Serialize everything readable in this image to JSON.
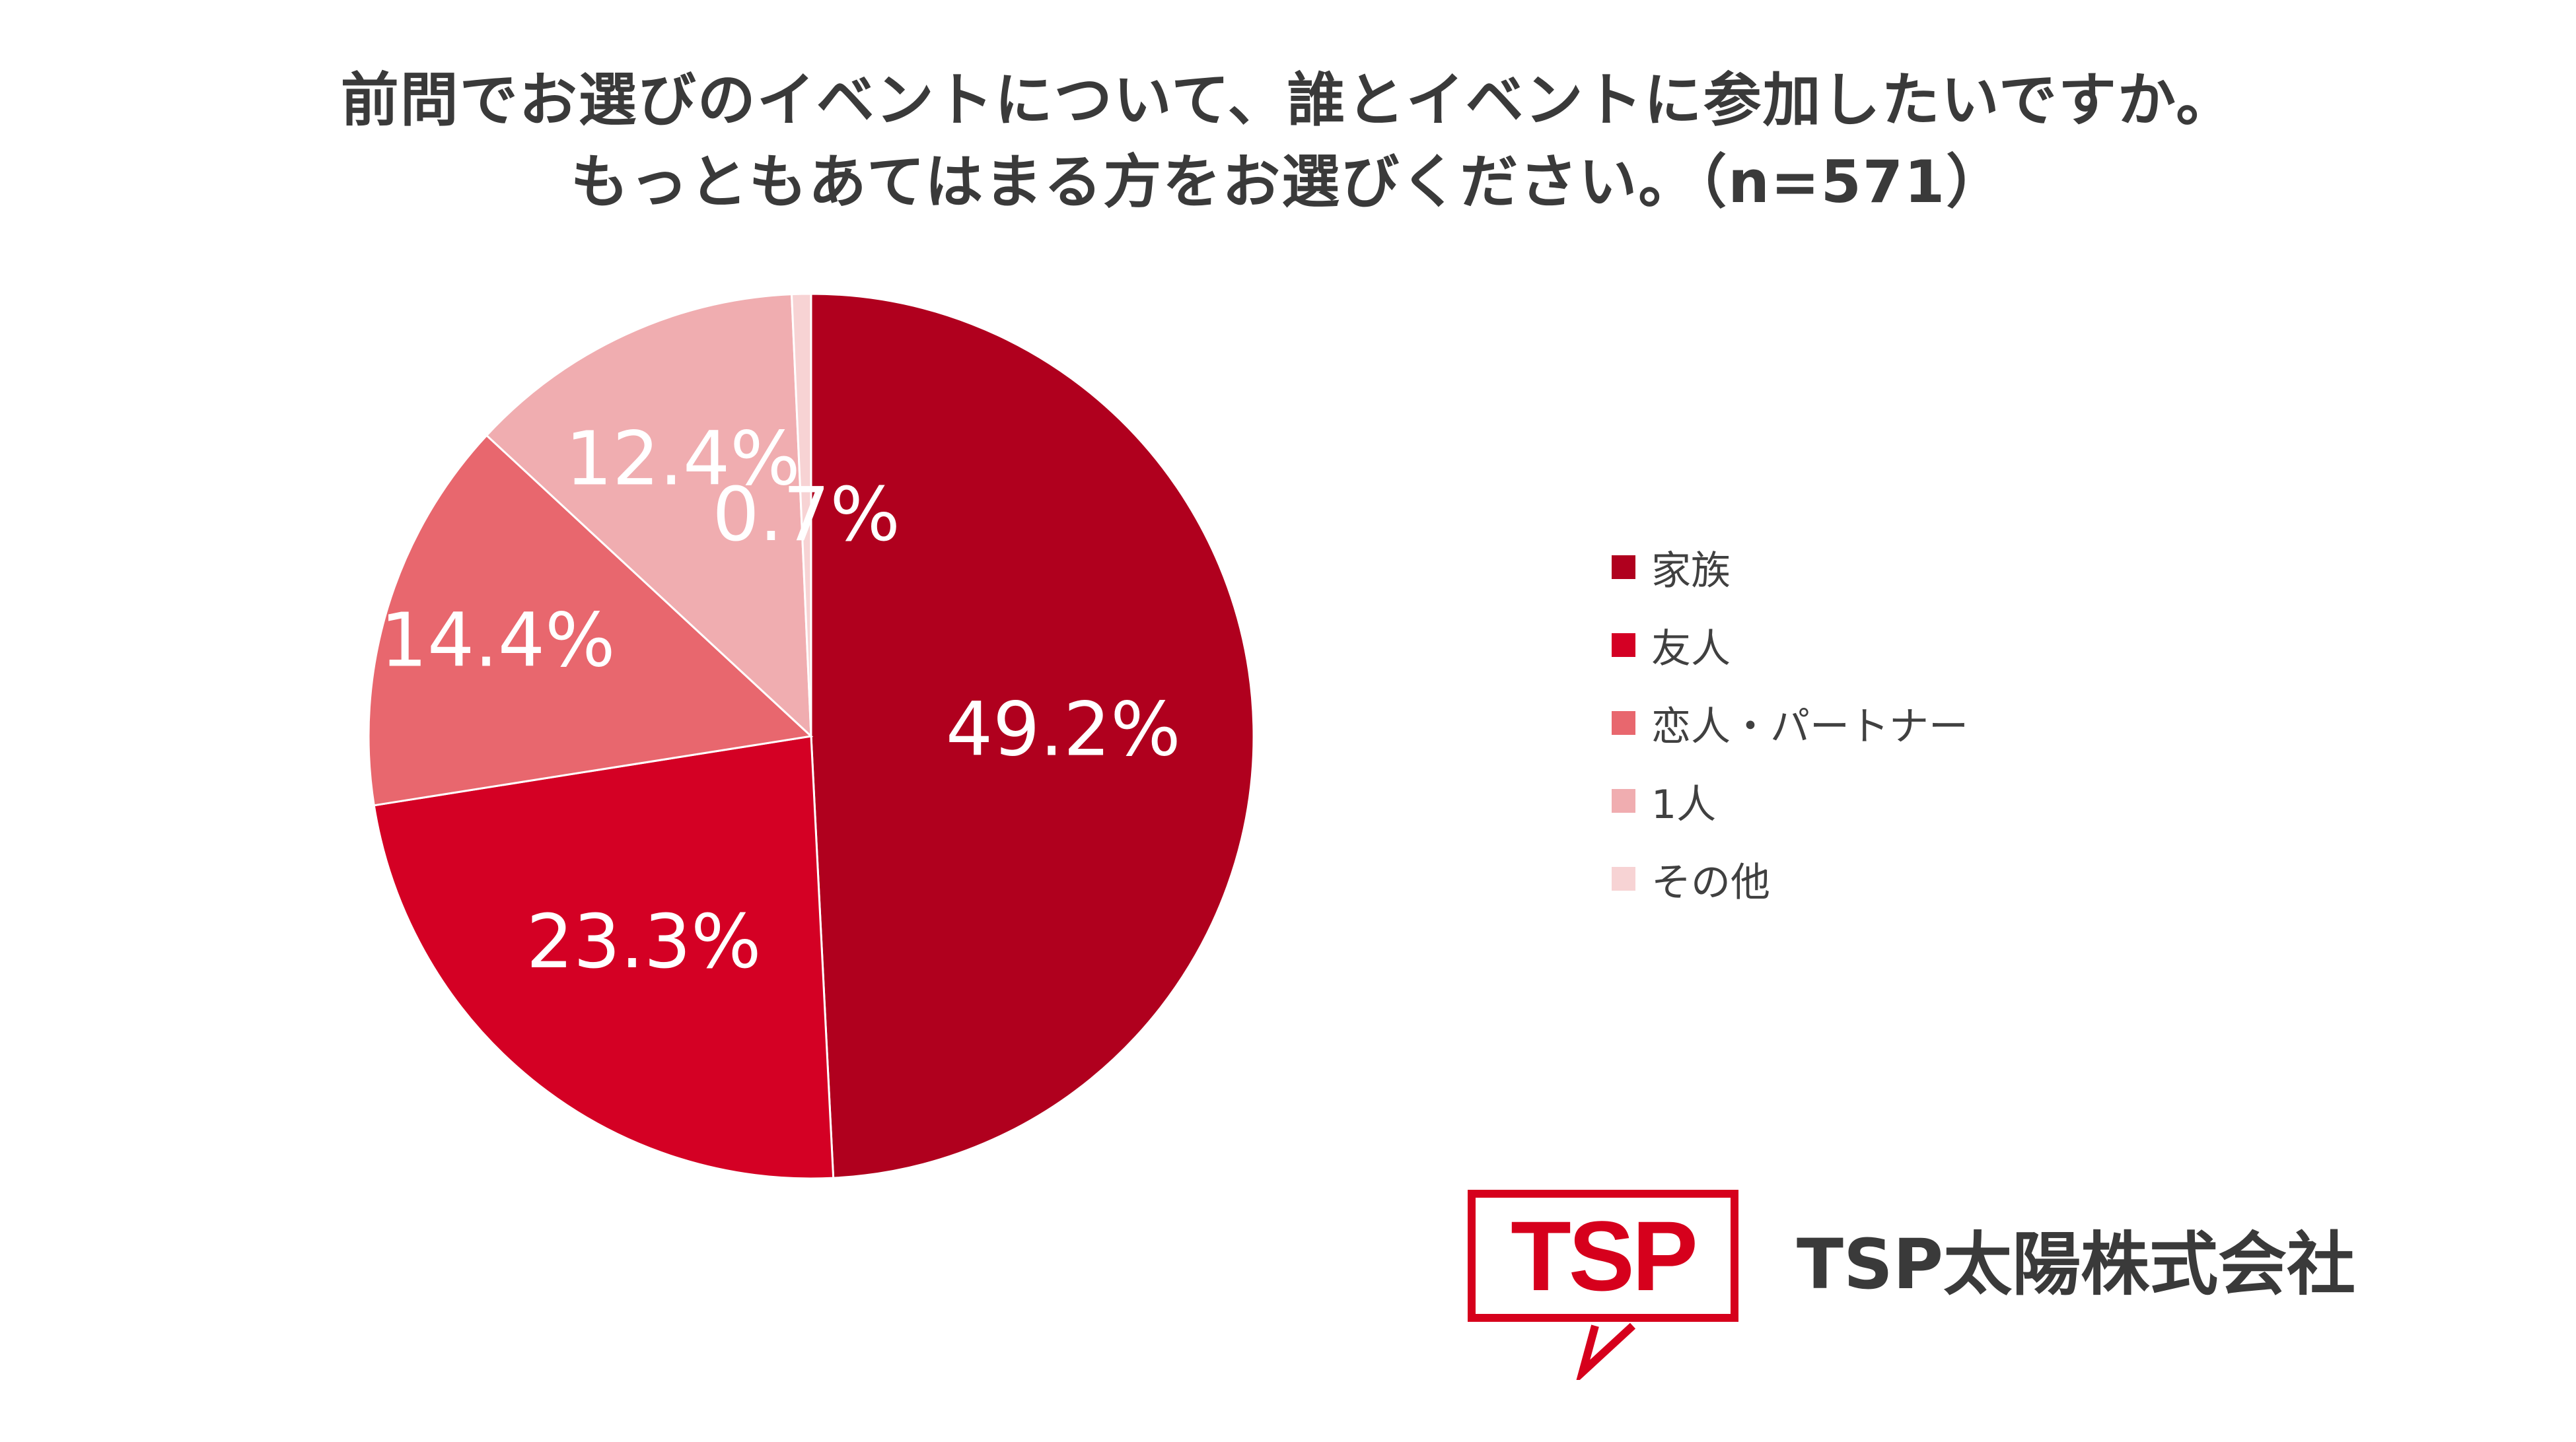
{
  "title": {
    "line1": "前問でお選びのイベントについて、誰とイベントに参加したいですか。",
    "line2": "もっともあてはまる方をお選びください。（n=571）"
  },
  "chart_data": {
    "type": "pie",
    "title": "前問でお選びのイベントについて、誰とイベントに参加したいですか。もっともあてはまる方をお選びください。（n=571）",
    "categories": [
      "家族",
      "友人",
      "恋人・パートナー",
      "1人",
      "その他"
    ],
    "values": [
      49.2,
      23.3,
      14.4,
      12.4,
      0.7
    ],
    "labels": [
      "49.2%",
      "23.3%",
      "14.4%",
      "12.4%",
      "0.7%"
    ],
    "colors": [
      "#b0001e",
      "#d40024",
      "#e8676e",
      "#f0adb0",
      "#f7d3d4"
    ],
    "start_angle": "12 o'clock",
    "direction": "clockwise",
    "legend_position": "right"
  },
  "legend": [
    {
      "label": "家族",
      "color": "#b0001e"
    },
    {
      "label": "友人",
      "color": "#d40024"
    },
    {
      "label": "恋人・パートナー",
      "color": "#e8676e"
    },
    {
      "label": "1人",
      "color": "#f0adb0"
    },
    {
      "label": "その他",
      "color": "#f7d3d4"
    }
  ],
  "logo": {
    "mark": "TSP",
    "company_name": "TSP太陽株式会社",
    "color": "#d6001c"
  }
}
